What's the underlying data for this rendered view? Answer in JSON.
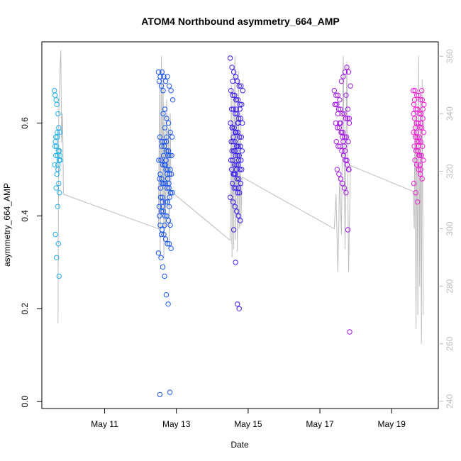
{
  "chart_data": {
    "type": "scatter",
    "title": "ATOM4 Northbound asymmetry_664_AMP",
    "xlabel": "Date",
    "ylabel": "asymmetry_664_AMP",
    "x_ticks": [
      "May 11",
      "May 13",
      "May 15",
      "May 17",
      "May 19"
    ],
    "x_tick_days": [
      11,
      13,
      15,
      17,
      19
    ],
    "xlim_days": [
      9.25,
      20.3
    ],
    "ylim": [
      -0.015,
      0.775
    ],
    "y_ticks": [
      0.0,
      0.2,
      0.4,
      0.6
    ],
    "y2_ticks": [
      240,
      260,
      280,
      300,
      320,
      340,
      360
    ],
    "y2lim": [
      237.5,
      365
    ],
    "colors": {
      "c1": "#1faee6",
      "c2": "#1a55f0",
      "c3": "#3a1ff0",
      "c4": "#a31ae6",
      "c5": "#f01ad4",
      "secondary_line": "#bdbdbd"
    },
    "series": [
      {
        "color": "#1faee6",
        "x": [
          9.6,
          9.62,
          9.65,
          9.67,
          9.7,
          9.72,
          9.75,
          9.68,
          9.63,
          9.66,
          9.71,
          9.74,
          9.69,
          9.64,
          9.73,
          9.76,
          9.61,
          9.7,
          9.67,
          9.72,
          9.65,
          9.74,
          9.69,
          9.63,
          9.71,
          9.66,
          9.73,
          9.68,
          9.62,
          9.75,
          9.7,
          9.64
        ],
        "y": [
          0.67,
          0.66,
          0.65,
          0.64,
          0.62,
          0.59,
          0.58,
          0.57,
          0.56,
          0.55,
          0.54,
          0.54,
          0.53,
          0.53,
          0.52,
          0.52,
          0.51,
          0.5,
          0.49,
          0.47,
          0.46,
          0.45,
          0.42,
          0.36,
          0.34,
          0.31,
          0.27,
          0.58,
          0.55,
          0.53,
          0.51,
          0.57
        ]
      },
      {
        "color": "#1a55f0",
        "x": [
          12.5,
          12.55,
          12.6,
          12.65,
          12.7,
          12.75,
          12.8,
          12.85,
          12.9,
          12.52,
          12.58,
          12.63,
          12.68,
          12.73,
          12.78,
          12.83,
          12.88,
          12.54,
          12.6,
          12.66,
          12.72,
          12.77,
          12.82,
          12.87,
          12.51,
          12.57,
          12.62,
          12.67,
          12.71,
          12.76,
          12.81,
          12.86,
          12.53,
          12.59,
          12.64,
          12.69,
          12.74,
          12.79,
          12.84,
          12.89,
          12.56,
          12.61,
          12.7,
          12.75,
          12.8,
          12.52,
          12.58,
          12.63,
          12.68,
          12.73,
          12.78,
          12.83,
          12.55,
          12.6,
          12.65,
          12.7,
          12.75,
          12.8,
          12.85,
          12.5,
          12.57,
          12.62,
          12.67,
          12.72,
          12.77,
          12.82,
          12.54,
          12.59,
          12.64,
          12.69,
          12.74,
          12.79,
          12.84,
          12.61,
          12.66,
          12.71,
          12.76,
          12.81,
          12.53,
          12.58,
          12.63,
          12.68,
          12.73,
          12.78,
          12.83,
          12.56,
          12.62,
          12.67,
          12.72,
          12.77,
          12.55,
          12.6
        ],
        "y": [
          0.71,
          0.7,
          0.71,
          0.7,
          0.69,
          0.7,
          0.68,
          0.67,
          0.65,
          0.69,
          0.68,
          0.67,
          0.63,
          0.61,
          0.6,
          0.58,
          0.57,
          0.57,
          0.56,
          0.55,
          0.54,
          0.54,
          0.53,
          0.53,
          0.52,
          0.52,
          0.51,
          0.51,
          0.5,
          0.5,
          0.49,
          0.49,
          0.48,
          0.48,
          0.47,
          0.47,
          0.46,
          0.46,
          0.45,
          0.45,
          0.44,
          0.44,
          0.43,
          0.43,
          0.42,
          0.42,
          0.41,
          0.41,
          0.4,
          0.4,
          0.39,
          0.38,
          0.38,
          0.37,
          0.36,
          0.35,
          0.34,
          0.34,
          0.33,
          0.32,
          0.31,
          0.29,
          0.27,
          0.23,
          0.21,
          0.02,
          0.015,
          0.55,
          0.53,
          0.51,
          0.49,
          0.47,
          0.45,
          0.43,
          0.56,
          0.52,
          0.48,
          0.44,
          0.4,
          0.36,
          0.62,
          0.59,
          0.57,
          0.54,
          0.5,
          0.46,
          0.42,
          0.38,
          0.56,
          0.53,
          0.49,
          0.47
        ]
      },
      {
        "color": "#3a1ff0",
        "x": [
          14.5,
          14.55,
          14.6,
          14.65,
          14.7,
          14.75,
          14.8,
          14.85,
          14.52,
          14.57,
          14.62,
          14.67,
          14.72,
          14.77,
          14.82,
          14.54,
          14.59,
          14.64,
          14.69,
          14.74,
          14.79,
          14.84,
          14.51,
          14.56,
          14.61,
          14.66,
          14.71,
          14.76,
          14.81,
          14.53,
          14.58,
          14.63,
          14.68,
          14.73,
          14.78,
          14.83,
          14.55,
          14.6,
          14.65,
          14.7,
          14.75,
          14.8,
          14.52,
          14.57,
          14.62,
          14.67,
          14.72,
          14.77,
          14.82,
          14.54,
          14.59,
          14.64,
          14.69,
          14.74,
          14.79,
          14.56,
          14.61,
          14.66,
          14.71,
          14.76,
          14.5,
          14.58,
          14.63,
          14.68,
          14.73,
          14.78,
          14.6,
          14.65,
          14.7,
          14.75,
          14.57,
          14.62,
          14.67,
          14.72,
          14.64,
          14.69,
          14.74,
          14.61,
          14.66,
          14.71,
          14.59,
          14.63,
          14.68,
          14.73,
          14.77,
          14.55
        ],
        "y": [
          0.74,
          0.72,
          0.71,
          0.7,
          0.69,
          0.68,
          0.68,
          0.67,
          0.67,
          0.66,
          0.66,
          0.65,
          0.65,
          0.64,
          0.64,
          0.63,
          0.63,
          0.62,
          0.62,
          0.61,
          0.61,
          0.6,
          0.6,
          0.59,
          0.59,
          0.58,
          0.58,
          0.57,
          0.57,
          0.56,
          0.56,
          0.56,
          0.55,
          0.55,
          0.55,
          0.54,
          0.54,
          0.54,
          0.53,
          0.53,
          0.53,
          0.52,
          0.52,
          0.52,
          0.51,
          0.51,
          0.51,
          0.5,
          0.5,
          0.5,
          0.49,
          0.49,
          0.48,
          0.48,
          0.47,
          0.47,
          0.46,
          0.46,
          0.45,
          0.45,
          0.44,
          0.43,
          0.42,
          0.41,
          0.4,
          0.39,
          0.37,
          0.3,
          0.21,
          0.2,
          0.69,
          0.66,
          0.63,
          0.6,
          0.58,
          0.55,
          0.52,
          0.49,
          0.65,
          0.6,
          0.57,
          0.54,
          0.5,
          0.46,
          0.63,
          0.59
        ]
      },
      {
        "color": "#a31ae6",
        "x": [
          17.4,
          17.45,
          17.5,
          17.55,
          17.6,
          17.65,
          17.7,
          17.75,
          17.8,
          17.85,
          17.42,
          17.47,
          17.52,
          17.57,
          17.62,
          17.67,
          17.72,
          17.77,
          17.82,
          17.44,
          17.49,
          17.54,
          17.59,
          17.64,
          17.69,
          17.74,
          17.79,
          17.46,
          17.51,
          17.56,
          17.61,
          17.66,
          17.71,
          17.76,
          17.81,
          17.48,
          17.53,
          17.58,
          17.63,
          17.68,
          17.73,
          17.78,
          17.83,
          17.5,
          17.55,
          17.6,
          17.65,
          17.7,
          17.75,
          17.8,
          17.43,
          17.58,
          17.63,
          17.68,
          17.73,
          17.78,
          17.82
        ],
        "y": [
          0.67,
          0.66,
          0.66,
          0.65,
          0.69,
          0.7,
          0.71,
          0.72,
          0.71,
          0.68,
          0.64,
          0.64,
          0.63,
          0.63,
          0.62,
          0.62,
          0.61,
          0.61,
          0.6,
          0.6,
          0.59,
          0.59,
          0.58,
          0.58,
          0.57,
          0.57,
          0.56,
          0.56,
          0.55,
          0.55,
          0.54,
          0.53,
          0.52,
          0.51,
          0.5,
          0.5,
          0.49,
          0.48,
          0.47,
          0.46,
          0.45,
          0.37,
          0.15,
          0.62,
          0.6,
          0.58,
          0.56,
          0.54,
          0.52,
          0.5,
          0.64,
          0.6,
          0.57,
          0.55,
          0.66,
          0.63,
          0.61
        ]
      },
      {
        "color": "#f01ad4",
        "x": [
          19.6,
          19.65,
          19.7,
          19.75,
          19.8,
          19.85,
          19.9,
          19.62,
          19.67,
          19.72,
          19.77,
          19.82,
          19.87,
          19.64,
          19.69,
          19.74,
          19.79,
          19.84,
          19.89,
          19.61,
          19.66,
          19.71,
          19.76,
          19.81,
          19.86,
          19.63,
          19.68,
          19.73,
          19.78,
          19.83,
          19.88,
          19.65,
          19.7,
          19.75,
          19.8,
          19.85,
          19.62,
          19.67,
          19.72,
          19.77,
          19.82,
          19.87,
          19.64,
          19.69,
          19.74,
          19.79,
          19.84,
          19.61,
          19.66,
          19.71,
          19.76,
          19.81
        ],
        "y": [
          0.67,
          0.67,
          0.66,
          0.66,
          0.65,
          0.65,
          0.64,
          0.64,
          0.63,
          0.63,
          0.62,
          0.62,
          0.61,
          0.61,
          0.6,
          0.6,
          0.59,
          0.59,
          0.58,
          0.58,
          0.57,
          0.57,
          0.56,
          0.56,
          0.55,
          0.55,
          0.54,
          0.54,
          0.53,
          0.53,
          0.52,
          0.52,
          0.51,
          0.5,
          0.49,
          0.48,
          0.47,
          0.45,
          0.43,
          0.57,
          0.6,
          0.63,
          0.65,
          0.58,
          0.55,
          0.51,
          0.67,
          0.62,
          0.59,
          0.56,
          0.53,
          0.5
        ]
      }
    ],
    "secondary_series": {
      "color": "#bdbdbd",
      "x": [
        9.7,
        9.72,
        9.75,
        9.78,
        9.8,
        9.83,
        9.85,
        12.5,
        12.53,
        12.55,
        12.58,
        12.6,
        12.63,
        12.65,
        12.68,
        12.7,
        12.73,
        12.75,
        12.78,
        12.8,
        12.83,
        12.85,
        14.5,
        14.53,
        14.55,
        14.58,
        14.6,
        14.63,
        14.65,
        14.68,
        14.7,
        14.73,
        14.75,
        14.78,
        14.8,
        14.83,
        17.4,
        17.45,
        17.5,
        17.55,
        17.6,
        17.65,
        17.7,
        17.75,
        17.8,
        17.85,
        19.6,
        19.63,
        19.65,
        19.68,
        19.7,
        19.73,
        19.75,
        19.78,
        19.8,
        19.83,
        19.85,
        19.88
      ],
      "y": [
        267,
        340,
        353,
        362,
        330,
        340,
        312,
        300,
        350,
        290,
        360,
        305,
        355,
        290,
        340,
        300,
        345,
        310,
        335,
        296,
        340,
        313,
        296,
        350,
        290,
        345,
        293,
        360,
        296,
        340,
        292,
        355,
        300,
        340,
        301,
        318,
        300,
        312,
        285,
        318,
        298,
        360,
        293,
        358,
        285,
        322,
        313,
        300,
        345,
        265,
        340,
        270,
        360,
        280,
        345,
        260,
        352,
        270
      ]
    }
  }
}
